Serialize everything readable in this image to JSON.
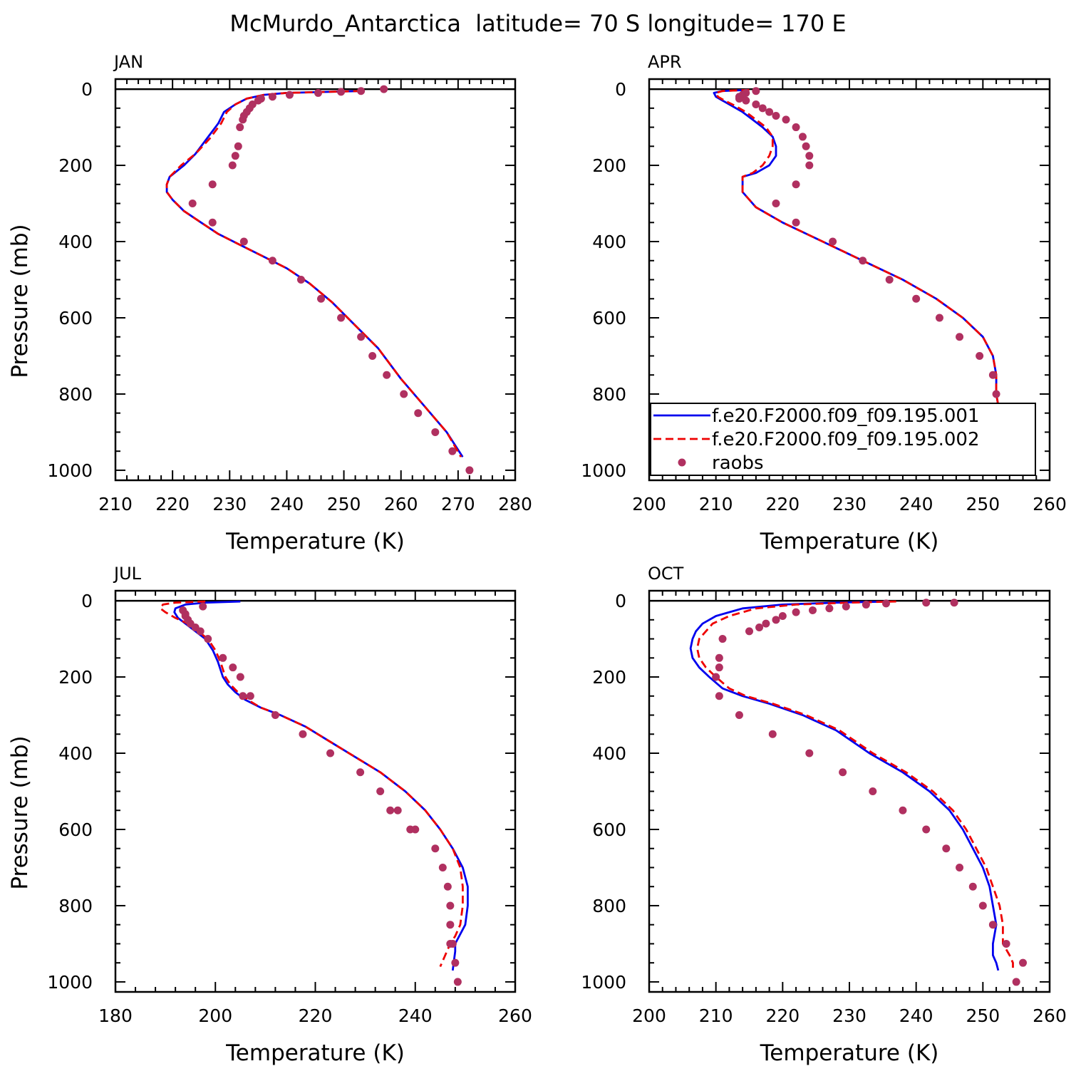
{
  "title": "McMurdo_Antarctica  latitude= 70 S longitude= 170 E",
  "colors": {
    "model1": "#0000ee",
    "model2": "#ee0000",
    "raobs": "#b03060",
    "axis": "#000000"
  },
  "legend": {
    "panel": "APR",
    "entries": [
      {
        "label": "f.e20.F2000.f09_f09.195.001",
        "style": "solid-line",
        "color": "#0000ee"
      },
      {
        "label": "f.e20.F2000.f09_f09.195.002",
        "style": "dashed-line",
        "color": "#ee0000"
      },
      {
        "label": "raobs",
        "style": "marker",
        "color": "#b03060"
      }
    ]
  },
  "chart_data": [
    {
      "type": "line",
      "panel_label": "JAN",
      "xlabel": "Temperature (K)",
      "ylabel": "Pressure (mb)",
      "xlim": [
        210,
        280
      ],
      "ylim": [
        1000,
        0
      ],
      "y_reversed": true,
      "xticks": [
        210,
        220,
        230,
        240,
        250,
        260,
        270,
        280
      ],
      "yticks": [
        0,
        200,
        400,
        600,
        800,
        1000
      ],
      "series": [
        {
          "name": "f.e20.F2000.f09_f09.195.001",
          "x": [
            253.0,
            240.0,
            236.0,
            233.0,
            231.0,
            229.0,
            228.0,
            226.0,
            224.0,
            222.0,
            219.5,
            219.0,
            219.0,
            220.0,
            222.0,
            225.0,
            228.0,
            232.0,
            236.0,
            240.0,
            244.0,
            248.0,
            252.0,
            256.0,
            260.0,
            264.0,
            268.0,
            270.8
          ],
          "y": [
            5,
            10,
            15,
            25,
            40,
            60,
            90,
            130,
            170,
            200,
            230,
            250,
            270,
            290,
            320,
            350,
            380,
            410,
            440,
            470,
            510,
            560,
            620,
            680,
            760,
            830,
            900,
            965
          ]
        },
        {
          "name": "f.e20.F2000.f09_f09.195.002",
          "x": [
            253.0,
            240.0,
            236.0,
            233.0,
            231.0,
            229.5,
            228.5,
            226.5,
            224.0,
            221.5,
            219.5,
            219.0,
            219.0,
            220.0,
            222.0,
            225.0,
            228.0,
            232.0,
            236.0,
            240.0,
            244.0,
            248.0,
            252.0,
            256.0,
            260.0,
            264.0,
            268.0,
            270.5
          ],
          "y": [
            5,
            10,
            15,
            25,
            40,
            60,
            90,
            130,
            170,
            200,
            230,
            250,
            270,
            290,
            320,
            350,
            380,
            410,
            440,
            470,
            510,
            560,
            620,
            680,
            760,
            830,
            900,
            965
          ]
        },
        {
          "name": "raobs",
          "x": [
            257.0,
            253.0,
            249.5,
            245.5,
            240.5,
            237.5,
            235.5,
            235.0,
            234.0,
            233.5,
            233.0,
            232.5,
            232.3,
            231.8,
            231.5,
            231.0,
            230.5,
            227.0,
            223.5,
            227.0,
            232.5,
            237.5,
            242.5,
            246.0,
            249.5,
            253.0,
            255.0,
            257.5,
            260.5,
            263.0,
            266.0,
            269.0,
            272.0
          ],
          "y": [
            0,
            5,
            7,
            10,
            15,
            20,
            25,
            30,
            40,
            50,
            60,
            70,
            80,
            100,
            150,
            175,
            200,
            250,
            300,
            350,
            400,
            450,
            500,
            550,
            600,
            650,
            700,
            750,
            800,
            850,
            900,
            950,
            1000
          ]
        }
      ]
    },
    {
      "type": "line",
      "panel_label": "APR",
      "xlabel": "Temperature (K)",
      "ylabel": "",
      "xlim": [
        200,
        260
      ],
      "ylim": [
        1000,
        0
      ],
      "y_reversed": true,
      "xticks": [
        200,
        210,
        220,
        230,
        240,
        250,
        260
      ],
      "yticks": [
        0,
        200,
        400,
        600,
        800,
        1000
      ],
      "series": [
        {
          "name": "f.e20.F2000.f09_f09.195.001",
          "x": [
            215.0,
            211.0,
            209.7,
            210.0,
            211.0,
            212.5,
            214.0,
            215.5,
            217.0,
            218.5,
            219.0,
            219.0,
            218.0,
            216.0,
            214.0,
            214.0,
            214.0,
            216.0,
            220.0,
            226.0,
            232.0,
            238.0,
            243.0,
            247.0,
            250.0,
            251.5,
            252.0,
            252.0,
            252.5,
            253.5,
            255.5
          ],
          "y": [
            2,
            5,
            10,
            20,
            30,
            45,
            60,
            80,
            100,
            125,
            150,
            175,
            200,
            220,
            230,
            250,
            270,
            310,
            350,
            400,
            450,
            500,
            550,
            600,
            650,
            700,
            750,
            800,
            850,
            900,
            960
          ]
        },
        {
          "name": "f.e20.F2000.f09_f09.195.002",
          "x": [
            215.0,
            211.0,
            210.0,
            210.3,
            211.3,
            213.0,
            214.5,
            216.0,
            217.5,
            218.5,
            218.5,
            218.0,
            217.0,
            215.5,
            214.0,
            214.0,
            214.0,
            216.0,
            220.0,
            226.0,
            232.0,
            238.0,
            243.0,
            247.0,
            250.0,
            251.5,
            252.0,
            252.0,
            252.5,
            253.5,
            255.0
          ],
          "y": [
            2,
            5,
            10,
            20,
            30,
            45,
            60,
            80,
            100,
            125,
            150,
            175,
            200,
            220,
            230,
            250,
            270,
            310,
            350,
            400,
            450,
            500,
            550,
            600,
            650,
            700,
            750,
            800,
            850,
            900,
            960
          ]
        },
        {
          "name": "raobs",
          "x": [
            216.0,
            214.5,
            214.0,
            213.5,
            213.5,
            214.5,
            216.0,
            217.0,
            218.0,
            219.0,
            220.5,
            222.0,
            223.0,
            223.5,
            224.0,
            224.0,
            222.0,
            219.0,
            222.0,
            227.5,
            232.0,
            236.0,
            240.0,
            243.5,
            246.5,
            249.5,
            251.5,
            252.0,
            252.5,
            253.0,
            254.0,
            255.5,
            256.5
          ],
          "y": [
            5,
            10,
            15,
            20,
            25,
            30,
            40,
            50,
            60,
            70,
            80,
            100,
            125,
            150,
            175,
            200,
            250,
            300,
            350,
            400,
            450,
            500,
            550,
            600,
            650,
            700,
            750,
            800,
            850,
            900,
            900,
            950,
            1000
          ]
        }
      ]
    },
    {
      "type": "line",
      "panel_label": "JUL",
      "xlabel": "Temperature (K)",
      "ylabel": "Pressure (mb)",
      "xlim": [
        180,
        260
      ],
      "ylim": [
        1000,
        0
      ],
      "y_reversed": true,
      "xticks": [
        180,
        200,
        220,
        240,
        260
      ],
      "yticks": [
        0,
        200,
        400,
        600,
        800,
        1000
      ],
      "series": [
        {
          "name": "f.e20.F2000.f09_f09.195.001",
          "x": [
            205.0,
            198.0,
            194.0,
            192.0,
            191.8,
            192.5,
            194.0,
            196.0,
            198.0,
            199.5,
            200.5,
            201.5,
            202.5,
            204.0,
            206.0,
            209.0,
            213.0,
            218.0,
            223.0,
            228.0,
            233.0,
            238.0,
            242.0,
            245.0,
            247.5,
            249.5,
            250.5,
            250.5,
            250.0,
            248.0,
            248.0,
            247.5
          ],
          "y": [
            2,
            5,
            10,
            20,
            30,
            45,
            60,
            80,
            100,
            130,
            160,
            200,
            220,
            240,
            260,
            280,
            300,
            330,
            370,
            410,
            450,
            500,
            550,
            600,
            650,
            700,
            750,
            800,
            850,
            900,
            920,
            970
          ]
        },
        {
          "name": "f.e20.F2000.f09_f09.195.002",
          "x": [
            198.0,
            192.0,
            189.5,
            189.0,
            190.0,
            192.0,
            194.5,
            196.5,
            198.5,
            200.0,
            201.0,
            202.0,
            203.0,
            204.5,
            206.5,
            209.0,
            213.0,
            218.0,
            223.0,
            228.0,
            233.0,
            238.0,
            242.0,
            245.0,
            247.5,
            249.0,
            249.5,
            249.5,
            249.0,
            248.0,
            247.0,
            246.0,
            245.0
          ],
          "y": [
            2,
            5,
            10,
            20,
            30,
            45,
            60,
            80,
            100,
            130,
            160,
            200,
            220,
            240,
            260,
            280,
            300,
            330,
            370,
            410,
            450,
            500,
            550,
            600,
            650,
            700,
            750,
            800,
            850,
            880,
            900,
            930,
            960
          ]
        },
        {
          "name": "raobs",
          "x": [
            197.5,
            193.5,
            194.0,
            194.0,
            194.5,
            195.0,
            196.0,
            197.0,
            198.5,
            201.5,
            203.5,
            205.0,
            205.5,
            207.0,
            212.0,
            217.5,
            223.0,
            229.0,
            233.0,
            235.0,
            236.5,
            239.0,
            240.0,
            244.0,
            245.5,
            246.5,
            247.0,
            247.0,
            247.0,
            247.5,
            248.0,
            248.5
          ],
          "y": [
            15,
            25,
            35,
            40,
            50,
            60,
            70,
            80,
            100,
            150,
            175,
            200,
            250,
            250,
            300,
            350,
            400,
            450,
            500,
            550,
            550,
            600,
            600,
            650,
            700,
            750,
            800,
            850,
            900,
            900,
            950,
            1000
          ]
        }
      ]
    },
    {
      "type": "line",
      "panel_label": "OCT",
      "xlabel": "Temperature (K)",
      "ylabel": "",
      "xlim": [
        200,
        260
      ],
      "ylim": [
        1000,
        0
      ],
      "y_reversed": true,
      "xticks": [
        200,
        210,
        220,
        230,
        240,
        250,
        260
      ],
      "yticks": [
        0,
        200,
        400,
        600,
        800,
        1000
      ],
      "series": [
        {
          "name": "f.e20.F2000.f09_f09.195.001",
          "x": [
            236.0,
            228.0,
            220.0,
            214.0,
            210.0,
            208.0,
            207.0,
            206.5,
            206.2,
            206.5,
            207.5,
            209.0,
            211.0,
            214.0,
            218.0,
            223.0,
            228.0,
            233.0,
            238.0,
            242.0,
            245.0,
            247.0,
            248.5,
            250.0,
            251.0,
            251.5,
            252.0,
            251.5,
            251.5,
            252.0,
            252.3
          ],
          "y": [
            2,
            5,
            10,
            20,
            40,
            60,
            80,
            100,
            125,
            150,
            175,
            200,
            230,
            250,
            270,
            300,
            340,
            400,
            450,
            500,
            550,
            600,
            650,
            700,
            750,
            800,
            850,
            900,
            930,
            950,
            970
          ]
        },
        {
          "name": "f.e20.F2000.f09_f09.195.002",
          "x": [
            237.0,
            230.0,
            222.0,
            216.0,
            212.0,
            209.5,
            208.5,
            207.5,
            207.2,
            207.5,
            208.5,
            210.0,
            212.0,
            214.5,
            218.5,
            223.5,
            228.5,
            233.5,
            238.5,
            242.5,
            245.5,
            247.5,
            249.0,
            250.5,
            251.5,
            252.5,
            253.0,
            253.0,
            254.0,
            254.5,
            254.5
          ],
          "y": [
            2,
            5,
            10,
            20,
            40,
            60,
            80,
            100,
            125,
            150,
            175,
            200,
            230,
            250,
            270,
            300,
            340,
            400,
            450,
            500,
            550,
            600,
            650,
            700,
            750,
            800,
            850,
            900,
            930,
            950,
            970
          ]
        },
        {
          "name": "raobs",
          "x": [
            245.7,
            241.5,
            235.5,
            232.5,
            229.5,
            227.0,
            224.5,
            222.0,
            220.0,
            219.0,
            217.5,
            216.5,
            215.0,
            211.0,
            210.5,
            210.5,
            210.0,
            210.5,
            213.5,
            218.5,
            224.0,
            229.0,
            233.5,
            238.0,
            241.5,
            244.5,
            246.5,
            248.5,
            250.0,
            251.5,
            253.5,
            256.0,
            255.0
          ],
          "y": [
            5,
            5,
            7,
            10,
            15,
            20,
            25,
            30,
            40,
            50,
            60,
            70,
            80,
            100,
            150,
            175,
            200,
            250,
            300,
            350,
            400,
            450,
            500,
            550,
            600,
            650,
            700,
            750,
            800,
            850,
            900,
            950,
            1000
          ]
        }
      ]
    }
  ]
}
